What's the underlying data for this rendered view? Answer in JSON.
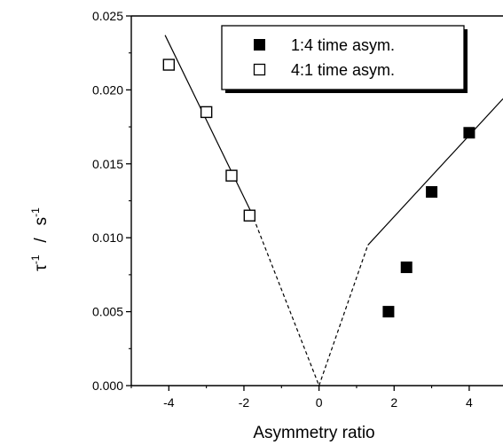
{
  "chart_data": {
    "type": "scatter",
    "title": "",
    "xlabel": "Asymmetry ratio",
    "ylabel": {
      "base": "τ",
      "exponent": "-1",
      "separator": "/",
      "unit": "s",
      "unit_exponent": "-1"
    },
    "xlim": [
      -5.0,
      4.9
    ],
    "ylim": [
      0,
      0.025
    ],
    "x_ticks": [
      -4,
      -2,
      0,
      2,
      4
    ],
    "x_tick_labels": [
      "-4",
      "-2",
      "0",
      "2",
      "4"
    ],
    "y_ticks": [
      0,
      0.005,
      0.01,
      0.015,
      0.02,
      0.025
    ],
    "y_tick_labels": [
      "0.000",
      "0.005",
      "0.010",
      "0.015",
      "0.020",
      "0.025"
    ],
    "grid": false,
    "legend_position": "top-right",
    "series": [
      {
        "name": "1:4 time asym.",
        "marker": "filled-square",
        "x": [
          1.85,
          2.33,
          3.0,
          4.0
        ],
        "y": [
          0.005,
          0.008,
          0.0131,
          0.0171
        ]
      },
      {
        "name": "4:1 time asym.",
        "marker": "open-square",
        "x": [
          -4.0,
          -3.0,
          -2.33,
          -1.85
        ],
        "y": [
          0.0217,
          0.0185,
          0.0142,
          0.0115
        ]
      }
    ],
    "fit_lines": [
      {
        "style": "solid",
        "x": [
          -4.1,
          -1.8
        ],
        "y": [
          0.0237,
          0.0117
        ]
      },
      {
        "style": "dashed",
        "x": [
          -1.8,
          0.0
        ],
        "y": [
          0.0117,
          0.0
        ]
      },
      {
        "style": "dashed",
        "x": [
          0.0,
          1.3
        ],
        "y": [
          0.0,
          0.0095
        ]
      },
      {
        "style": "solid",
        "x": [
          1.3,
          4.9
        ],
        "y": [
          0.0095,
          0.0194
        ]
      }
    ]
  }
}
